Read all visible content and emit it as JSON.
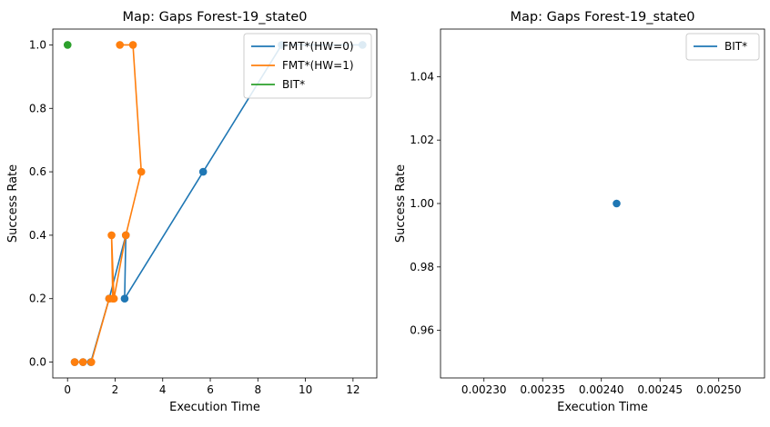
{
  "chart_data": [
    {
      "type": "line",
      "title": "Map: Gaps Forest-19_state0",
      "xlabel": "Execution Time",
      "ylabel": "Success Rate",
      "xlim": [
        -0.62,
        13.0
      ],
      "ylim": [
        -0.05,
        1.05
      ],
      "xticks": [
        0,
        2,
        4,
        6,
        8,
        10,
        12
      ],
      "xtick_labels": [
        "0",
        "2",
        "4",
        "6",
        "8",
        "10",
        "12"
      ],
      "yticks": [
        0.0,
        0.2,
        0.4,
        0.6,
        0.8,
        1.0
      ],
      "ytick_labels": [
        "0.0",
        "0.2",
        "0.4",
        "0.6",
        "0.8",
        "1.0"
      ],
      "grid": false,
      "legend_position": "top-right",
      "series": [
        {
          "name": "FMT*(HW=0)",
          "color": "#1f77b4",
          "x": [
            0.3,
            0.65,
            0.98,
            1.75,
            2.45,
            2.4,
            5.7,
            9.0,
            12.4
          ],
          "y": [
            0.0,
            0.0,
            0.0,
            0.2,
            0.4,
            0.2,
            0.6,
            1.0,
            1.0
          ]
        },
        {
          "name": "FMT*(HW=1)",
          "color": "#ff7f0e",
          "x": [
            0.3,
            0.65,
            1.0,
            1.75,
            1.9,
            1.85,
            1.95,
            2.45,
            3.1,
            2.75,
            2.2
          ],
          "y": [
            0.0,
            0.0,
            0.0,
            0.2,
            0.2,
            0.4,
            0.2,
            0.4,
            0.6,
            1.0,
            1.0
          ]
        },
        {
          "name": "BIT*",
          "color": "#2ca02c",
          "x": [
            0.0024
          ],
          "y": [
            1.0
          ]
        }
      ]
    },
    {
      "type": "scatter",
      "title": "Map: Gaps Forest-19_state0",
      "xlabel": "Execution Time",
      "ylabel": "Success Rate",
      "xlim": [
        0.002263,
        0.002539
      ],
      "ylim": [
        0.945,
        1.055
      ],
      "xticks": [
        0.0023,
        0.00235,
        0.0024,
        0.00245,
        0.0025
      ],
      "xtick_labels": [
        "0.00230",
        "0.00235",
        "0.00240",
        "0.00245",
        "0.00250"
      ],
      "yticks": [
        0.96,
        0.98,
        1.0,
        1.02,
        1.04
      ],
      "ytick_labels": [
        "0.96",
        "0.98",
        "1.00",
        "1.02",
        "1.04"
      ],
      "grid": false,
      "legend_position": "top-right",
      "series": [
        {
          "name": "BIT*",
          "color": "#1f77b4",
          "x": [
            0.002413
          ],
          "y": [
            1.0
          ]
        }
      ]
    }
  ]
}
